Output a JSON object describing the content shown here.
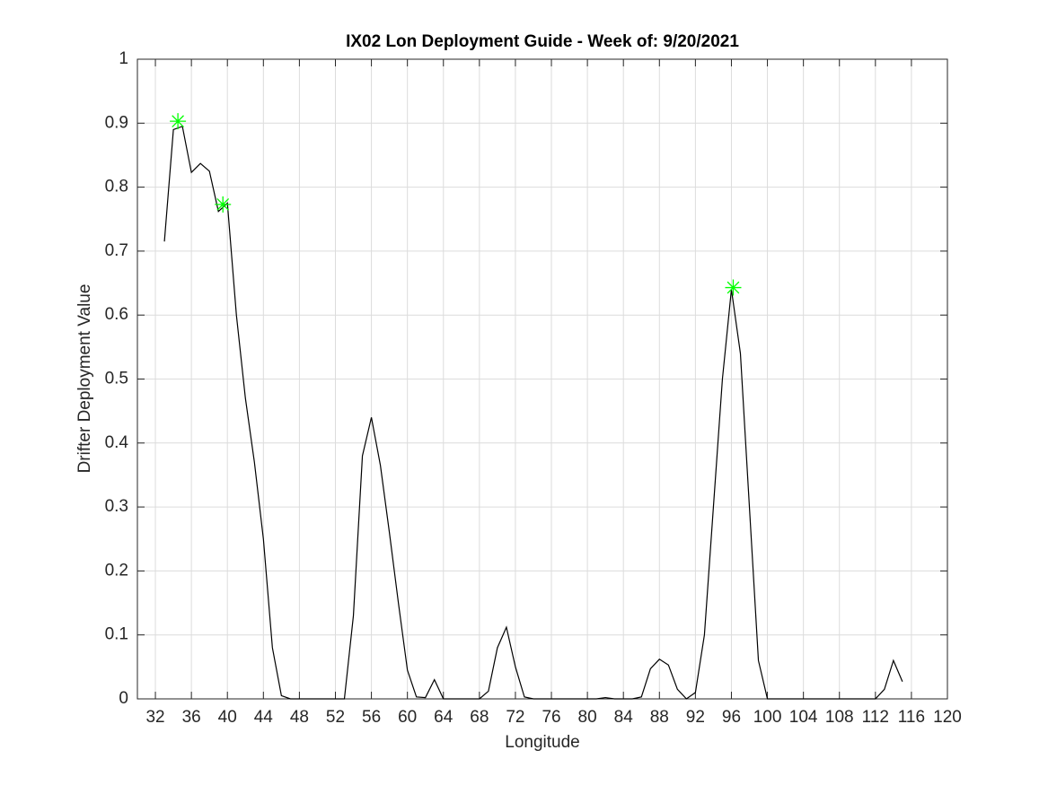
{
  "chart_data": {
    "type": "line",
    "title": "IX02 Lon Deployment Guide - Week of: 9/20/2021",
    "x_label": "Longitude",
    "y_label": "Drifter Deployment Value",
    "x": [
      33,
      34,
      35,
      36,
      37,
      38,
      39,
      40,
      41,
      42,
      43,
      44,
      45,
      46,
      47,
      48,
      49,
      50,
      51,
      52,
      53,
      54,
      55,
      56,
      57,
      58,
      59,
      60,
      61,
      62,
      63,
      64,
      65,
      66,
      67,
      68,
      69,
      70,
      71,
      72,
      73,
      74,
      75,
      76,
      77,
      78,
      79,
      80,
      81,
      82,
      83,
      84,
      85,
      86,
      87,
      88,
      89,
      90,
      91,
      92,
      93,
      94,
      95,
      96,
      97,
      98,
      99,
      100,
      101,
      102,
      103,
      104,
      105,
      106,
      107,
      108,
      109,
      110,
      111,
      112,
      113,
      114,
      115
    ],
    "series": [
      {
        "color": "#000000",
        "values": [
          0.715,
          0.89,
          0.895,
          0.823,
          0.837,
          0.825,
          0.762,
          0.775,
          0.6,
          0.47,
          0.37,
          0.25,
          0.08,
          0.005,
          0,
          0,
          0,
          0,
          0,
          0,
          0,
          0.13,
          0.38,
          0.44,
          0.365,
          0.26,
          0.15,
          0.045,
          0.003,
          0.002,
          0.03,
          0,
          0,
          0,
          0,
          0,
          0.012,
          0.08,
          0.112,
          0.05,
          0.003,
          0,
          0,
          0,
          0,
          0,
          0,
          0,
          0,
          0.002,
          0,
          0,
          0,
          0.003,
          0.047,
          0.062,
          0.053,
          0.015,
          0,
          0.01,
          0.1,
          0.3,
          0.5,
          0.64,
          0.54,
          0.3,
          0.06,
          0,
          0,
          0,
          0,
          0,
          0,
          0,
          0,
          0,
          0,
          0,
          0,
          0,
          0.015,
          0.06,
          0.027
        ]
      }
    ],
    "markers": {
      "color": "#00ff00",
      "x": [
        34.5,
        39.5,
        96.2
      ],
      "values": [
        0.903,
        0.773,
        0.643
      ]
    },
    "xlim": [
      30,
      120
    ],
    "ylim": [
      0,
      1
    ],
    "xticks": [
      32,
      36,
      40,
      44,
      48,
      52,
      56,
      60,
      64,
      68,
      72,
      76,
      80,
      84,
      88,
      92,
      96,
      100,
      104,
      108,
      112,
      116,
      120
    ],
    "yticks": [
      0,
      0.1,
      0.2,
      0.3,
      0.4,
      0.5,
      0.6,
      0.7,
      0.8,
      0.9,
      1
    ],
    "grid": true
  }
}
